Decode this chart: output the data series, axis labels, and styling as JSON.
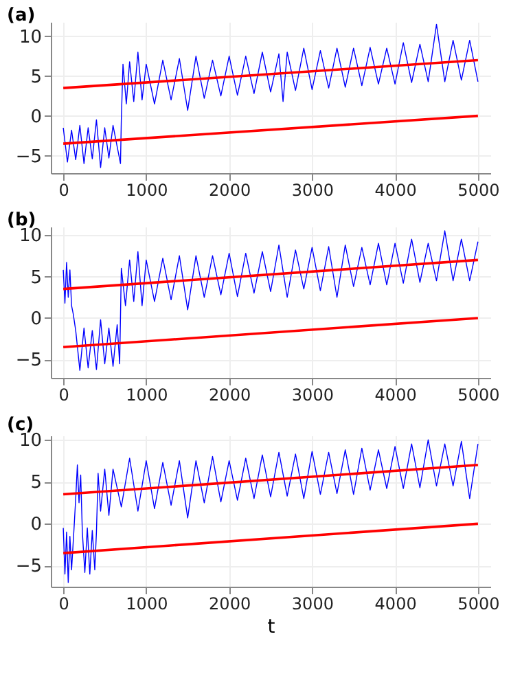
{
  "chart_data": [
    {
      "type": "line",
      "title": "(a)",
      "xlim": [
        -150,
        5150
      ],
      "ylim": [
        -7.2,
        11.8
      ],
      "xticks": [
        0,
        1000,
        2000,
        3000,
        4000,
        5000
      ],
      "yticks": [
        -5,
        0,
        5,
        10
      ],
      "grid": true,
      "series": [
        {
          "color": "#0000ff",
          "x": [
            0,
            50,
            100,
            150,
            200,
            250,
            300,
            350,
            400,
            450,
            500,
            550,
            600,
            690,
            700,
            720,
            760,
            800,
            850,
            900,
            950,
            1000,
            1100,
            1200,
            1300,
            1400,
            1500,
            1600,
            1700,
            1800,
            1900,
            2000,
            2100,
            2200,
            2300,
            2400,
            2500,
            2600,
            2650,
            2700,
            2800,
            2900,
            3000,
            3100,
            3200,
            3300,
            3400,
            3500,
            3600,
            3700,
            3800,
            3900,
            4000,
            4100,
            4200,
            4300,
            4400,
            4500,
            4600,
            4700,
            4800,
            4900,
            5000
          ],
          "values": [
            -1.5,
            -5.8,
            -1.8,
            -5.5,
            -1.2,
            -6,
            -1.5,
            -5.4,
            -0.5,
            -6.5,
            -1.5,
            -5.3,
            -1.2,
            -6,
            -0.5,
            6.5,
            1.5,
            6.8,
            1.8,
            8,
            2,
            6.5,
            1.5,
            7,
            2,
            7.2,
            0.7,
            7.5,
            2.2,
            7,
            2.5,
            7.5,
            2.6,
            7.5,
            2.8,
            8,
            3,
            7.8,
            1.8,
            8,
            3.2,
            8.5,
            3.3,
            8.2,
            3.5,
            8.5,
            3.6,
            8.5,
            3.8,
            8.6,
            4,
            8.5,
            4,
            9.2,
            4.2,
            9,
            4.3,
            11.5,
            4.3,
            9.5,
            4.5,
            9.5,
            4.3
          ]
        },
        {
          "color": "#ff0000",
          "x": [
            0,
            5000
          ],
          "values": [
            3.5,
            7
          ]
        },
        {
          "color": "#ff0000",
          "x": [
            0,
            5000
          ],
          "values": [
            -3.5,
            0
          ]
        }
      ]
    },
    {
      "type": "line",
      "title": "(b)",
      "xlim": [
        -150,
        5150
      ],
      "ylim": [
        -7.2,
        11
      ],
      "xticks": [
        0,
        1000,
        2000,
        3000,
        4000,
        5000
      ],
      "yticks": [
        -5,
        0,
        5,
        10
      ],
      "grid": true,
      "series": [
        {
          "color": "#0000ff",
          "x": [
            0,
            20,
            40,
            60,
            80,
            100,
            120,
            150,
            200,
            250,
            300,
            350,
            400,
            450,
            500,
            550,
            600,
            650,
            680,
            700,
            750,
            800,
            850,
            900,
            950,
            1000,
            1100,
            1200,
            1300,
            1400,
            1500,
            1600,
            1700,
            1800,
            1900,
            2000,
            2100,
            2200,
            2300,
            2400,
            2500,
            2600,
            2700,
            2800,
            2900,
            3000,
            3100,
            3200,
            3300,
            3400,
            3500,
            3600,
            3700,
            3800,
            3900,
            4000,
            4100,
            4200,
            4300,
            4400,
            4500,
            4600,
            4700,
            4800,
            4900,
            5000
          ],
          "values": [
            5.8,
            1.8,
            6.7,
            2.5,
            5.8,
            1.5,
            0.5,
            -1.5,
            -6.3,
            -1.2,
            -6,
            -1.5,
            -6.2,
            -0.2,
            -5.5,
            -1.2,
            -5.8,
            -0.8,
            -5.5,
            6,
            1.5,
            7,
            2,
            8,
            1.5,
            7,
            2,
            7.2,
            2.2,
            7.5,
            1,
            7.5,
            2.5,
            7.5,
            2.8,
            7.8,
            2.6,
            7.8,
            3,
            8,
            3.2,
            8.8,
            2.5,
            8.2,
            3.5,
            8.5,
            3.3,
            8.6,
            2.5,
            8.8,
            3.8,
            8.5,
            4,
            9,
            4,
            9,
            4.2,
            9.5,
            4.3,
            9,
            4.5,
            10.5,
            4.5,
            9.5,
            4.5,
            9.2
          ]
        },
        {
          "color": "#ff0000",
          "x": [
            0,
            5000
          ],
          "values": [
            3.5,
            7
          ]
        },
        {
          "color": "#ff0000",
          "x": [
            0,
            5000
          ],
          "values": [
            -3.5,
            0
          ]
        }
      ]
    },
    {
      "type": "line",
      "title": "(c)",
      "xlabel": "t",
      "xlim": [
        -150,
        5150
      ],
      "ylim": [
        -7.5,
        10.5
      ],
      "xticks": [
        0,
        1000,
        2000,
        3000,
        4000,
        5000
      ],
      "yticks": [
        -5,
        0,
        5,
        10
      ],
      "grid": true,
      "series": [
        {
          "color": "#0000ff",
          "x": [
            0,
            20,
            40,
            60,
            80,
            100,
            130,
            150,
            170,
            190,
            210,
            230,
            260,
            290,
            320,
            350,
            380,
            400,
            420,
            450,
            500,
            550,
            600,
            700,
            800,
            900,
            1000,
            1100,
            1200,
            1300,
            1400,
            1500,
            1600,
            1700,
            1800,
            1900,
            2000,
            2100,
            2200,
            2300,
            2400,
            2500,
            2600,
            2700,
            2800,
            2900,
            3000,
            3100,
            3200,
            3300,
            3400,
            3500,
            3600,
            3700,
            3800,
            3900,
            4000,
            4100,
            4200,
            4300,
            4400,
            4500,
            4600,
            4700,
            4800,
            4900,
            5000
          ],
          "values": [
            -0.5,
            -6,
            -1,
            -7,
            -1.5,
            -5.5,
            -0.5,
            3,
            7,
            2.5,
            5.8,
            -1,
            -5.8,
            -0.5,
            -6,
            -0.8,
            -5.5,
            -1,
            6,
            1.5,
            6.5,
            1,
            6.5,
            2,
            7.8,
            1.5,
            7.5,
            1.8,
            7.3,
            2.2,
            7.5,
            0.7,
            7.5,
            2.5,
            8,
            2.6,
            7.5,
            2.8,
            7.8,
            3,
            8.2,
            3.2,
            8.5,
            3.3,
            8.3,
            3,
            8.6,
            3.5,
            8.5,
            3.6,
            8.8,
            3.5,
            9,
            4,
            8.8,
            4.2,
            9.2,
            4.2,
            9.5,
            4.3,
            10,
            4.5,
            9.5,
            4.5,
            9.8,
            3,
            9.5
          ]
        },
        {
          "color": "#ff0000",
          "x": [
            0,
            5000
          ],
          "values": [
            3.5,
            7
          ]
        },
        {
          "color": "#ff0000",
          "x": [
            0,
            5000
          ],
          "values": [
            -3.5,
            0
          ]
        }
      ]
    }
  ]
}
